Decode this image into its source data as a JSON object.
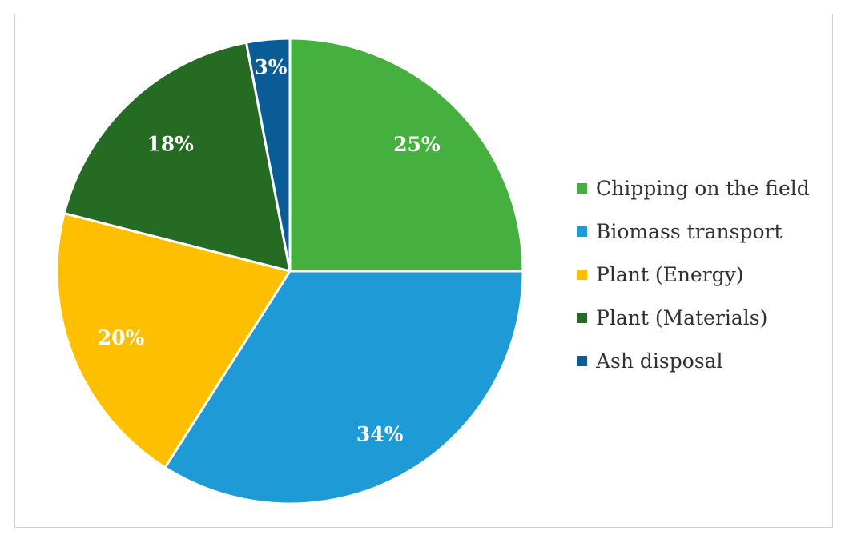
{
  "chart_data": {
    "type": "pie",
    "title": "",
    "categories": [
      "Chipping on the field",
      "Biomass transport",
      "Plant (Energy)",
      "Plant (Materials)",
      "Ash disposal"
    ],
    "values": [
      25,
      34,
      20,
      18,
      3
    ],
    "data_labels": [
      "25%",
      "34%",
      "20%",
      "18%",
      "3%"
    ],
    "colors": [
      "#46b03f",
      "#1e9bd7",
      "#fdbf00",
      "#266b24",
      "#0a5c96"
    ],
    "legend_placement": "right",
    "start_angle": "12 o'clock, clockwise"
  }
}
